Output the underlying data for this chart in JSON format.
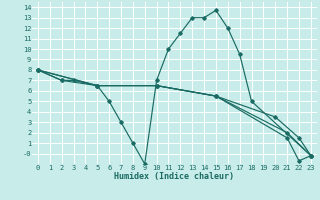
{
  "xlabel": "Humidex (Indice chaleur)",
  "bg_color": "#c8ece9",
  "grid_color": "#ffffff",
  "line_color": "#1a6b63",
  "xlim": [
    -0.5,
    23.5
  ],
  "ylim": [
    -1,
    14.5
  ],
  "xticks": [
    0,
    1,
    2,
    3,
    4,
    5,
    6,
    7,
    8,
    9,
    10,
    11,
    12,
    13,
    14,
    15,
    16,
    17,
    18,
    19,
    20,
    21,
    22,
    23
  ],
  "yticks": [
    0,
    1,
    2,
    3,
    4,
    5,
    6,
    7,
    8,
    9,
    10,
    11,
    12,
    13,
    14
  ],
  "lines": [
    {
      "x": [
        0,
        2,
        3,
        5,
        6,
        7,
        8,
        9,
        10,
        11,
        12,
        13,
        14,
        15,
        16,
        17,
        18,
        23
      ],
      "y": [
        8,
        7,
        7,
        6.5,
        5,
        3,
        1,
        -1,
        7,
        10,
        11.5,
        13,
        13,
        13.7,
        12,
        9.5,
        5,
        -0.2
      ]
    },
    {
      "x": [
        0,
        2,
        5,
        10,
        15,
        20,
        22,
        23
      ],
      "y": [
        8,
        7,
        6.5,
        6.5,
        5.5,
        3.5,
        1.5,
        -0.2
      ]
    },
    {
      "x": [
        0,
        5,
        10,
        15,
        21,
        23
      ],
      "y": [
        8,
        6.5,
        6.5,
        5.5,
        2,
        -0.2
      ]
    },
    {
      "x": [
        0,
        5,
        10,
        15,
        21,
        22,
        23
      ],
      "y": [
        8,
        6.5,
        6.5,
        5.5,
        1.5,
        -0.7,
        -0.2
      ]
    }
  ]
}
